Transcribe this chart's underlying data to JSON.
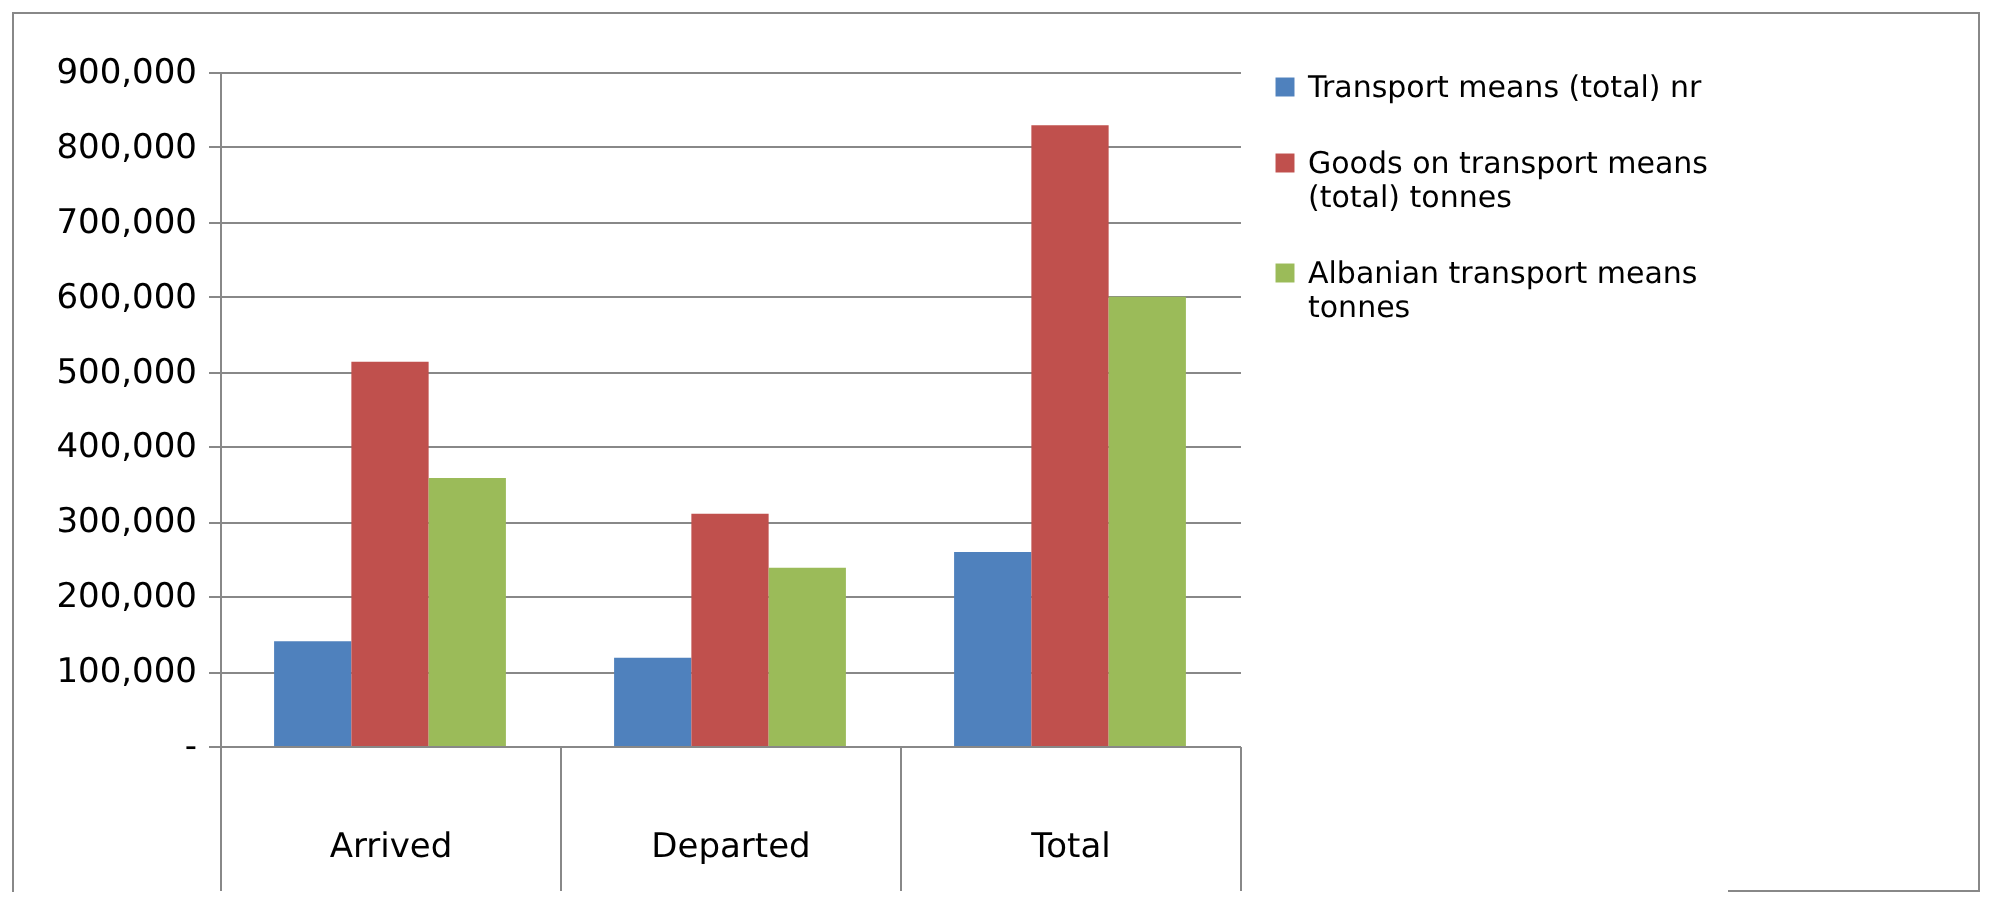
{
  "chart_data": {
    "type": "bar",
    "categories": [
      "Arrived",
      "Departed",
      "Total"
    ],
    "series": [
      {
        "name": "Transport means (total) nr",
        "color": "#4f81bd",
        "values": [
          140000,
          118000,
          259000
        ]
      },
      {
        "name": "Goods on transport means (total) tonnes",
        "color": "#c0504d",
        "values": [
          513000,
          310000,
          829000
        ]
      },
      {
        "name": "Albanian transport means tonnes",
        "color": "#9bbb59",
        "values": [
          358000,
          238000,
          600000
        ]
      }
    ],
    "ylim": [
      0,
      900000
    ],
    "yticks": [
      {
        "value": 0,
        "label": "-"
      },
      {
        "value": 100000,
        "label": "100,000"
      },
      {
        "value": 200000,
        "label": "200,000"
      },
      {
        "value": 300000,
        "label": "300,000"
      },
      {
        "value": 400000,
        "label": "400,000"
      },
      {
        "value": 500000,
        "label": "500,000"
      },
      {
        "value": 600000,
        "label": "600,000"
      },
      {
        "value": 700000,
        "label": "700,000"
      },
      {
        "value": 800000,
        "label": "800,000"
      },
      {
        "value": 900000,
        "label": "900,000"
      }
    ],
    "grid": "y",
    "legend": "right"
  }
}
